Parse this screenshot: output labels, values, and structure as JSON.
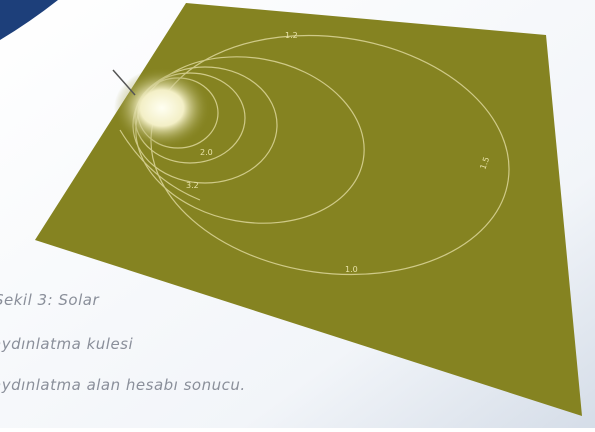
{
  "figure": {
    "caption": [
      "Şekil 3: Solar",
      "aydınlatma kulesi",
      "aydınlatma alan hesabı sonucu."
    ],
    "contour_labels": [
      "1.2",
      "1.5",
      "1.0",
      "2.0",
      "3.2"
    ]
  }
}
